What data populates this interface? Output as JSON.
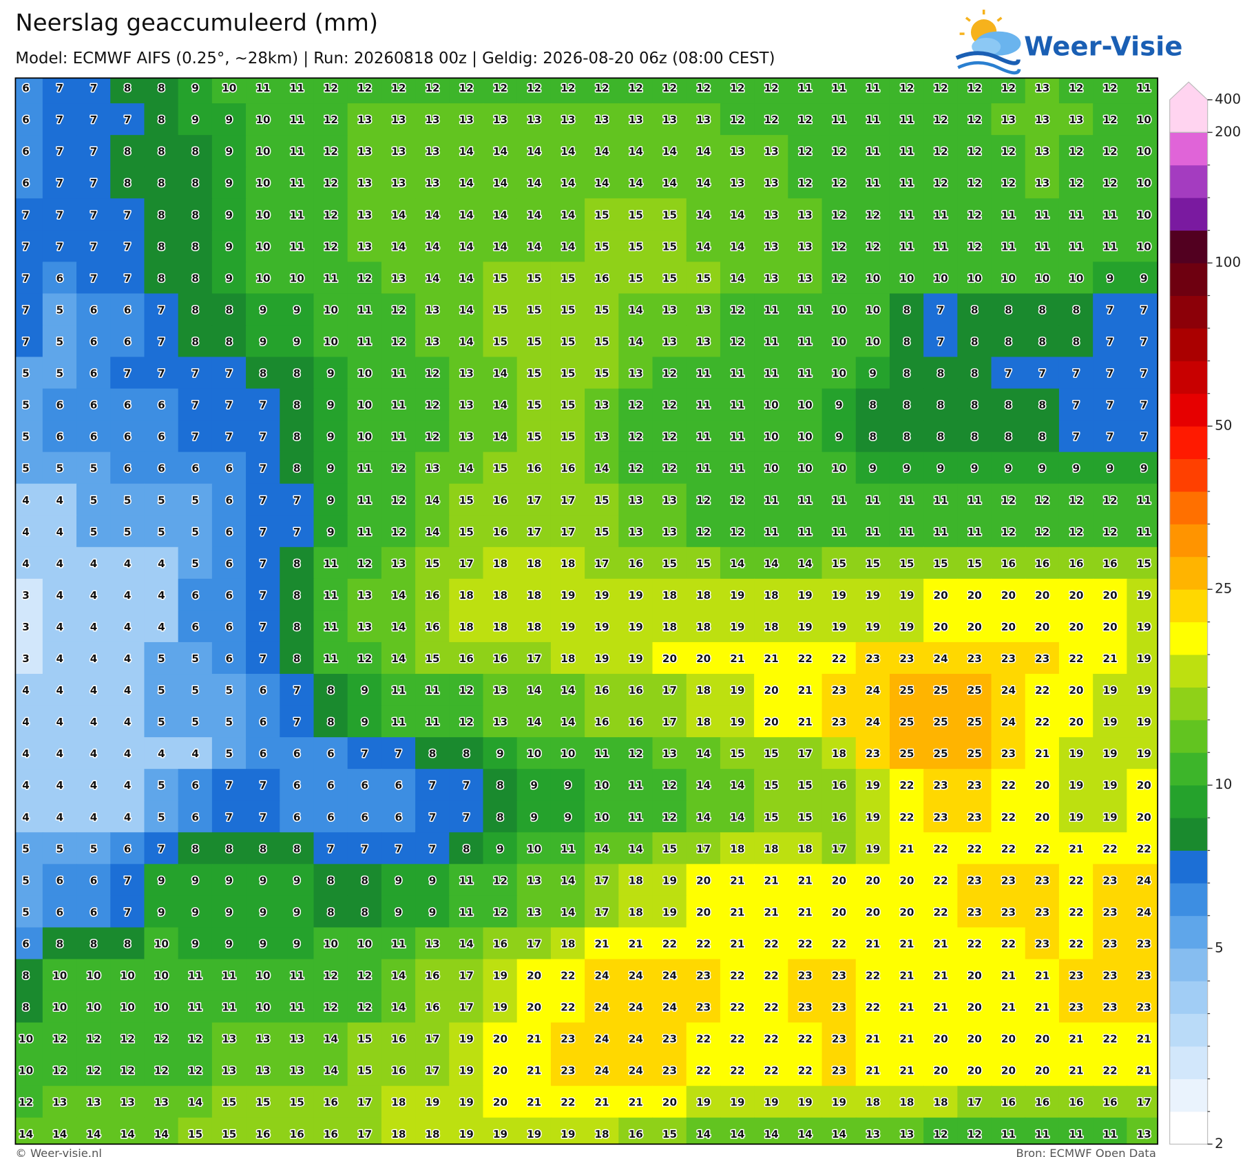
{
  "title": "Neerslag geaccumuleerd (mm)",
  "subtitle": "Model: ECMWF AIFS (0.25°, ~28km)  |  Run: 20260818 00z  |  Geldig: 2026-08-20 06z (08:00 CEST)",
  "logo": "Weer-Visie",
  "grid": {
    "rows": [
      [
        6,
        7,
        7,
        8,
        8,
        9,
        10,
        11,
        11,
        12,
        12,
        12,
        12,
        12,
        12,
        12,
        12,
        12,
        12,
        12,
        12,
        12,
        12,
        11,
        11,
        11,
        12,
        12,
        12,
        12,
        13,
        12,
        12,
        11
      ],
      [
        6,
        7,
        7,
        7,
        8,
        9,
        9,
        10,
        11,
        12,
        13,
        13,
        13,
        13,
        13,
        13,
        13,
        13,
        13,
        13,
        13,
        12,
        12,
        12,
        11,
        11,
        11,
        12,
        12,
        13,
        13,
        13,
        12,
        10
      ],
      [
        6,
        7,
        7,
        8,
        8,
        8,
        9,
        10,
        11,
        12,
        13,
        13,
        13,
        14,
        14,
        14,
        14,
        14,
        14,
        14,
        14,
        13,
        13,
        12,
        12,
        11,
        11,
        12,
        12,
        12,
        13,
        12,
        12,
        10
      ],
      [
        6,
        7,
        7,
        8,
        8,
        8,
        9,
        10,
        11,
        12,
        13,
        13,
        13,
        14,
        14,
        14,
        14,
        14,
        14,
        14,
        14,
        13,
        13,
        12,
        12,
        11,
        11,
        12,
        12,
        12,
        13,
        12,
        12,
        10
      ],
      [
        7,
        7,
        7,
        7,
        8,
        8,
        9,
        10,
        11,
        12,
        13,
        14,
        14,
        14,
        14,
        14,
        14,
        15,
        15,
        15,
        14,
        14,
        13,
        13,
        12,
        12,
        11,
        11,
        12,
        11,
        11,
        11,
        11,
        10
      ],
      [
        7,
        7,
        7,
        7,
        8,
        8,
        9,
        10,
        11,
        12,
        13,
        14,
        14,
        14,
        14,
        14,
        14,
        15,
        15,
        15,
        14,
        14,
        13,
        13,
        12,
        12,
        11,
        11,
        12,
        11,
        11,
        11,
        11,
        10
      ],
      [
        7,
        6,
        7,
        7,
        8,
        8,
        9,
        10,
        10,
        11,
        12,
        13,
        14,
        14,
        15,
        15,
        15,
        16,
        15,
        15,
        15,
        14,
        13,
        13,
        12,
        10,
        10,
        10,
        10,
        10,
        10,
        10,
        9,
        9
      ],
      [
        7,
        5,
        6,
        6,
        7,
        8,
        8,
        9,
        9,
        10,
        11,
        12,
        13,
        14,
        15,
        15,
        15,
        15,
        14,
        13,
        13,
        12,
        11,
        11,
        10,
        10,
        8,
        7,
        8,
        8,
        8,
        8,
        7,
        7
      ],
      [
        7,
        5,
        6,
        6,
        7,
        8,
        8,
        9,
        9,
        10,
        11,
        12,
        13,
        14,
        15,
        15,
        15,
        15,
        14,
        13,
        13,
        12,
        11,
        11,
        10,
        10,
        8,
        7,
        8,
        8,
        8,
        8,
        7,
        7
      ],
      [
        5,
        5,
        6,
        7,
        7,
        7,
        7,
        8,
        8,
        9,
        10,
        11,
        12,
        13,
        14,
        15,
        15,
        15,
        13,
        12,
        11,
        11,
        11,
        11,
        10,
        9,
        8,
        8,
        8,
        7,
        7,
        7,
        7,
        7
      ],
      [
        5,
        6,
        6,
        6,
        6,
        7,
        7,
        7,
        8,
        9,
        10,
        11,
        12,
        13,
        14,
        15,
        15,
        13,
        12,
        12,
        11,
        11,
        10,
        10,
        9,
        8,
        8,
        8,
        8,
        8,
        8,
        7,
        7,
        7
      ],
      [
        5,
        6,
        6,
        6,
        6,
        7,
        7,
        7,
        8,
        9,
        10,
        11,
        12,
        13,
        14,
        15,
        15,
        13,
        12,
        12,
        11,
        11,
        10,
        10,
        9,
        8,
        8,
        8,
        8,
        8,
        8,
        7,
        7,
        7
      ],
      [
        5,
        5,
        5,
        6,
        6,
        6,
        6,
        7,
        8,
        9,
        11,
        12,
        13,
        14,
        15,
        16,
        16,
        14,
        12,
        12,
        11,
        11,
        10,
        10,
        10,
        9,
        9,
        9,
        9,
        9,
        9,
        9,
        9,
        9
      ],
      [
        4,
        4,
        5,
        5,
        5,
        5,
        6,
        7,
        7,
        9,
        11,
        12,
        14,
        15,
        16,
        17,
        17,
        15,
        13,
        13,
        12,
        12,
        11,
        11,
        11,
        11,
        11,
        11,
        11,
        12,
        12,
        12,
        12,
        11
      ],
      [
        4,
        4,
        5,
        5,
        5,
        5,
        6,
        7,
        7,
        9,
        11,
        12,
        14,
        15,
        16,
        17,
        17,
        15,
        13,
        13,
        12,
        12,
        11,
        11,
        11,
        11,
        11,
        11,
        11,
        12,
        12,
        12,
        12,
        11
      ],
      [
        4,
        4,
        4,
        4,
        4,
        5,
        6,
        7,
        8,
        11,
        12,
        13,
        15,
        17,
        18,
        18,
        18,
        17,
        16,
        15,
        15,
        14,
        14,
        14,
        15,
        15,
        15,
        15,
        15,
        16,
        16,
        16,
        16,
        15
      ],
      [
        3,
        4,
        4,
        4,
        4,
        6,
        6,
        7,
        8,
        11,
        13,
        14,
        16,
        18,
        18,
        18,
        19,
        19,
        19,
        18,
        18,
        19,
        18,
        19,
        19,
        19,
        19,
        20,
        20,
        20,
        20,
        20,
        20,
        19
      ],
      [
        3,
        4,
        4,
        4,
        4,
        6,
        6,
        7,
        8,
        11,
        13,
        14,
        16,
        18,
        18,
        18,
        19,
        19,
        19,
        18,
        18,
        19,
        18,
        19,
        19,
        19,
        19,
        20,
        20,
        20,
        20,
        20,
        20,
        19
      ],
      [
        3,
        4,
        4,
        4,
        5,
        5,
        6,
        7,
        8,
        11,
        12,
        14,
        15,
        16,
        16,
        17,
        18,
        19,
        19,
        20,
        20,
        21,
        21,
        22,
        22,
        23,
        23,
        24,
        23,
        23,
        23,
        22,
        21,
        19
      ],
      [
        4,
        4,
        4,
        4,
        5,
        5,
        5,
        6,
        7,
        8,
        9,
        11,
        11,
        12,
        13,
        14,
        14,
        16,
        16,
        17,
        18,
        19,
        20,
        21,
        23,
        24,
        25,
        25,
        25,
        24,
        22,
        20,
        19,
        19
      ],
      [
        4,
        4,
        4,
        4,
        5,
        5,
        5,
        6,
        7,
        8,
        9,
        11,
        11,
        12,
        13,
        14,
        14,
        16,
        16,
        17,
        18,
        19,
        20,
        21,
        23,
        24,
        25,
        25,
        25,
        24,
        22,
        20,
        19,
        19
      ],
      [
        4,
        4,
        4,
        4,
        4,
        4,
        5,
        6,
        6,
        6,
        7,
        7,
        8,
        8,
        9,
        10,
        10,
        11,
        12,
        13,
        14,
        15,
        15,
        17,
        18,
        23,
        25,
        25,
        25,
        23,
        21,
        19,
        19,
        19
      ],
      [
        4,
        4,
        4,
        4,
        5,
        6,
        7,
        7,
        6,
        6,
        6,
        6,
        7,
        7,
        8,
        9,
        9,
        10,
        11,
        12,
        14,
        14,
        15,
        15,
        16,
        19,
        22,
        23,
        23,
        22,
        20,
        19,
        19,
        20
      ],
      [
        4,
        4,
        4,
        4,
        5,
        6,
        7,
        7,
        6,
        6,
        6,
        6,
        7,
        7,
        8,
        9,
        9,
        10,
        11,
        12,
        14,
        14,
        15,
        15,
        16,
        19,
        22,
        23,
        23,
        22,
        20,
        19,
        19,
        20
      ],
      [
        5,
        5,
        5,
        6,
        7,
        8,
        8,
        8,
        8,
        7,
        7,
        7,
        7,
        8,
        9,
        10,
        11,
        14,
        14,
        15,
        17,
        18,
        18,
        18,
        17,
        19,
        21,
        22,
        22,
        22,
        22,
        21,
        22,
        22
      ],
      [
        5,
        6,
        6,
        7,
        9,
        9,
        9,
        9,
        9,
        8,
        8,
        9,
        9,
        11,
        12,
        13,
        14,
        17,
        18,
        19,
        20,
        21,
        21,
        21,
        20,
        20,
        20,
        22,
        23,
        23,
        23,
        22,
        23,
        24
      ],
      [
        5,
        6,
        6,
        7,
        9,
        9,
        9,
        9,
        9,
        8,
        8,
        9,
        9,
        11,
        12,
        13,
        14,
        17,
        18,
        19,
        20,
        21,
        21,
        21,
        20,
        20,
        20,
        22,
        23,
        23,
        23,
        22,
        23,
        24
      ],
      [
        6,
        8,
        8,
        8,
        10,
        9,
        9,
        9,
        9,
        10,
        10,
        11,
        13,
        14,
        16,
        17,
        18,
        21,
        21,
        22,
        22,
        21,
        22,
        22,
        22,
        21,
        21,
        21,
        22,
        22,
        23,
        22,
        23,
        23
      ],
      [
        8,
        10,
        10,
        10,
        10,
        11,
        11,
        10,
        11,
        12,
        12,
        14,
        16,
        17,
        19,
        20,
        22,
        24,
        24,
        24,
        23,
        22,
        22,
        23,
        23,
        22,
        21,
        21,
        20,
        21,
        21,
        23,
        23,
        23
      ],
      [
        8,
        10,
        10,
        10,
        10,
        11,
        11,
        10,
        11,
        12,
        12,
        14,
        16,
        17,
        19,
        20,
        22,
        24,
        24,
        24,
        23,
        22,
        22,
        23,
        23,
        22,
        21,
        21,
        20,
        21,
        21,
        23,
        23,
        23
      ],
      [
        10,
        12,
        12,
        12,
        12,
        12,
        13,
        13,
        13,
        14,
        15,
        16,
        17,
        19,
        20,
        21,
        23,
        24,
        24,
        23,
        22,
        22,
        22,
        22,
        23,
        21,
        21,
        20,
        20,
        20,
        20,
        21,
        22,
        21
      ],
      [
        10,
        12,
        12,
        12,
        12,
        12,
        13,
        13,
        13,
        14,
        15,
        16,
        17,
        19,
        20,
        21,
        23,
        24,
        24,
        23,
        22,
        22,
        22,
        22,
        23,
        21,
        21,
        20,
        20,
        20,
        20,
        21,
        22,
        21
      ],
      [
        12,
        13,
        13,
        13,
        13,
        14,
        15,
        15,
        15,
        16,
        17,
        18,
        19,
        19,
        20,
        21,
        22,
        21,
        21,
        20,
        19,
        19,
        19,
        19,
        19,
        18,
        18,
        18,
        17,
        16,
        16,
        16,
        16,
        17
      ],
      [
        14,
        14,
        14,
        14,
        14,
        15,
        15,
        16,
        16,
        16,
        17,
        18,
        18,
        19,
        19,
        19,
        19,
        18,
        16,
        15,
        14,
        14,
        14,
        14,
        14,
        13,
        13,
        12,
        12,
        11,
        11,
        11,
        11,
        13
      ]
    ]
  },
  "colorbar": {
    "levels": [
      2,
      2.5,
      3,
      3.5,
      4,
      4.5,
      5,
      6,
      7,
      8,
      9,
      10,
      12.5,
      15,
      17.5,
      20,
      22.5,
      25,
      30,
      35,
      40,
      45,
      50,
      60,
      70,
      80,
      90,
      100,
      125,
      150,
      175,
      200,
      400
    ],
    "colors": [
      "#ffffff",
      "#eaf3fd",
      "#d2e7fb",
      "#badbf8",
      "#a1cdf5",
      "#86bdf0",
      "#5fa6ea",
      "#3d8ee2",
      "#1c6fd6",
      "#1a8a2e",
      "#25a22c",
      "#3db52a",
      "#62c420",
      "#8fd118",
      "#bde010",
      "#ffff00",
      "#ffd800",
      "#ffb400",
      "#ff9400",
      "#ff7000",
      "#ff4000",
      "#ff1a00",
      "#e60000",
      "#c80000",
      "#aa0000",
      "#8c0008",
      "#6e0010",
      "#520020",
      "#7a1aa0",
      "#a43cc0",
      "#e064d8",
      "#ffd4f0"
    ],
    "ticks": [
      2,
      5,
      10,
      25,
      50,
      100,
      200,
      400
    ]
  },
  "footer": {
    "left": "© Weer-visie.nl",
    "right": "Bron: ECMWF Open Data"
  }
}
